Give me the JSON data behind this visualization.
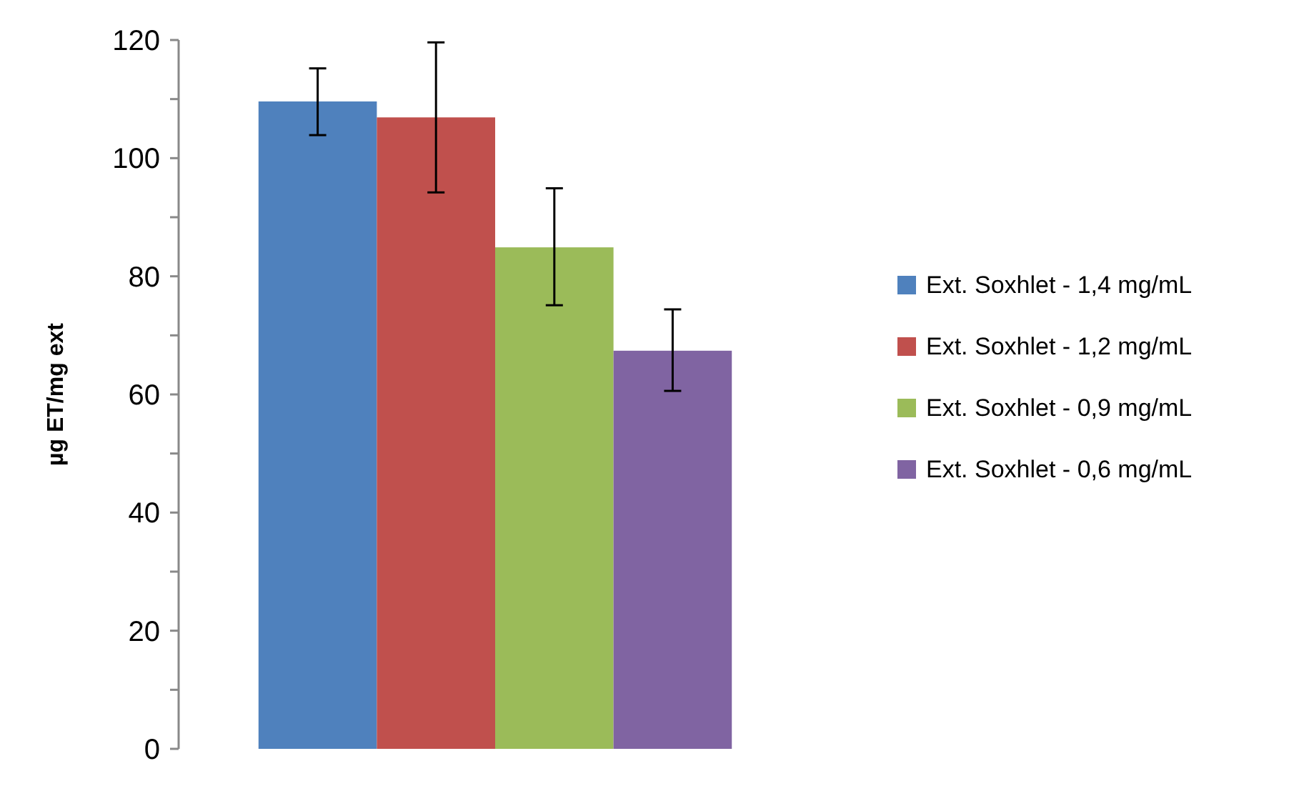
{
  "chart_data": {
    "type": "bar",
    "ylabel": "µg ET/mg ext",
    "categories": [
      null
    ],
    "series": [
      {
        "name": "Ext. Soxhlet - 1,4 mg/mL",
        "color": "#4f81bd",
        "values": [
          109.6
        ],
        "errors": [
          [
            103.9,
            115.2
          ]
        ]
      },
      {
        "name": "Ext. Soxhlet - 1,2 mg/mL",
        "color": "#c0504d",
        "values": [
          106.9
        ],
        "errors": [
          [
            94.2,
            119.6
          ]
        ]
      },
      {
        "name": "Ext. Soxhlet - 0,9 mg/mL",
        "color": "#9bbb59",
        "values": [
          84.9
        ],
        "errors": [
          [
            75.1,
            94.9
          ]
        ]
      },
      {
        "name": "Ext. Soxhlet - 0,6 mg/mL",
        "color": "#8064a2",
        "values": [
          67.4
        ],
        "errors": [
          [
            60.6,
            74.4
          ]
        ]
      }
    ],
    "ylim": [
      0,
      120
    ],
    "yticks": [
      0,
      {
        "value": 10,
        "label": null
      },
      20,
      {
        "value": 30,
        "label": null
      },
      40,
      {
        "value": 50,
        "label": null
      },
      60,
      {
        "value": 70,
        "label": null
      },
      80,
      {
        "value": 90,
        "label": null
      },
      100,
      {
        "value": 110,
        "label": null
      },
      120
    ],
    "grid": false,
    "legend": "right"
  }
}
